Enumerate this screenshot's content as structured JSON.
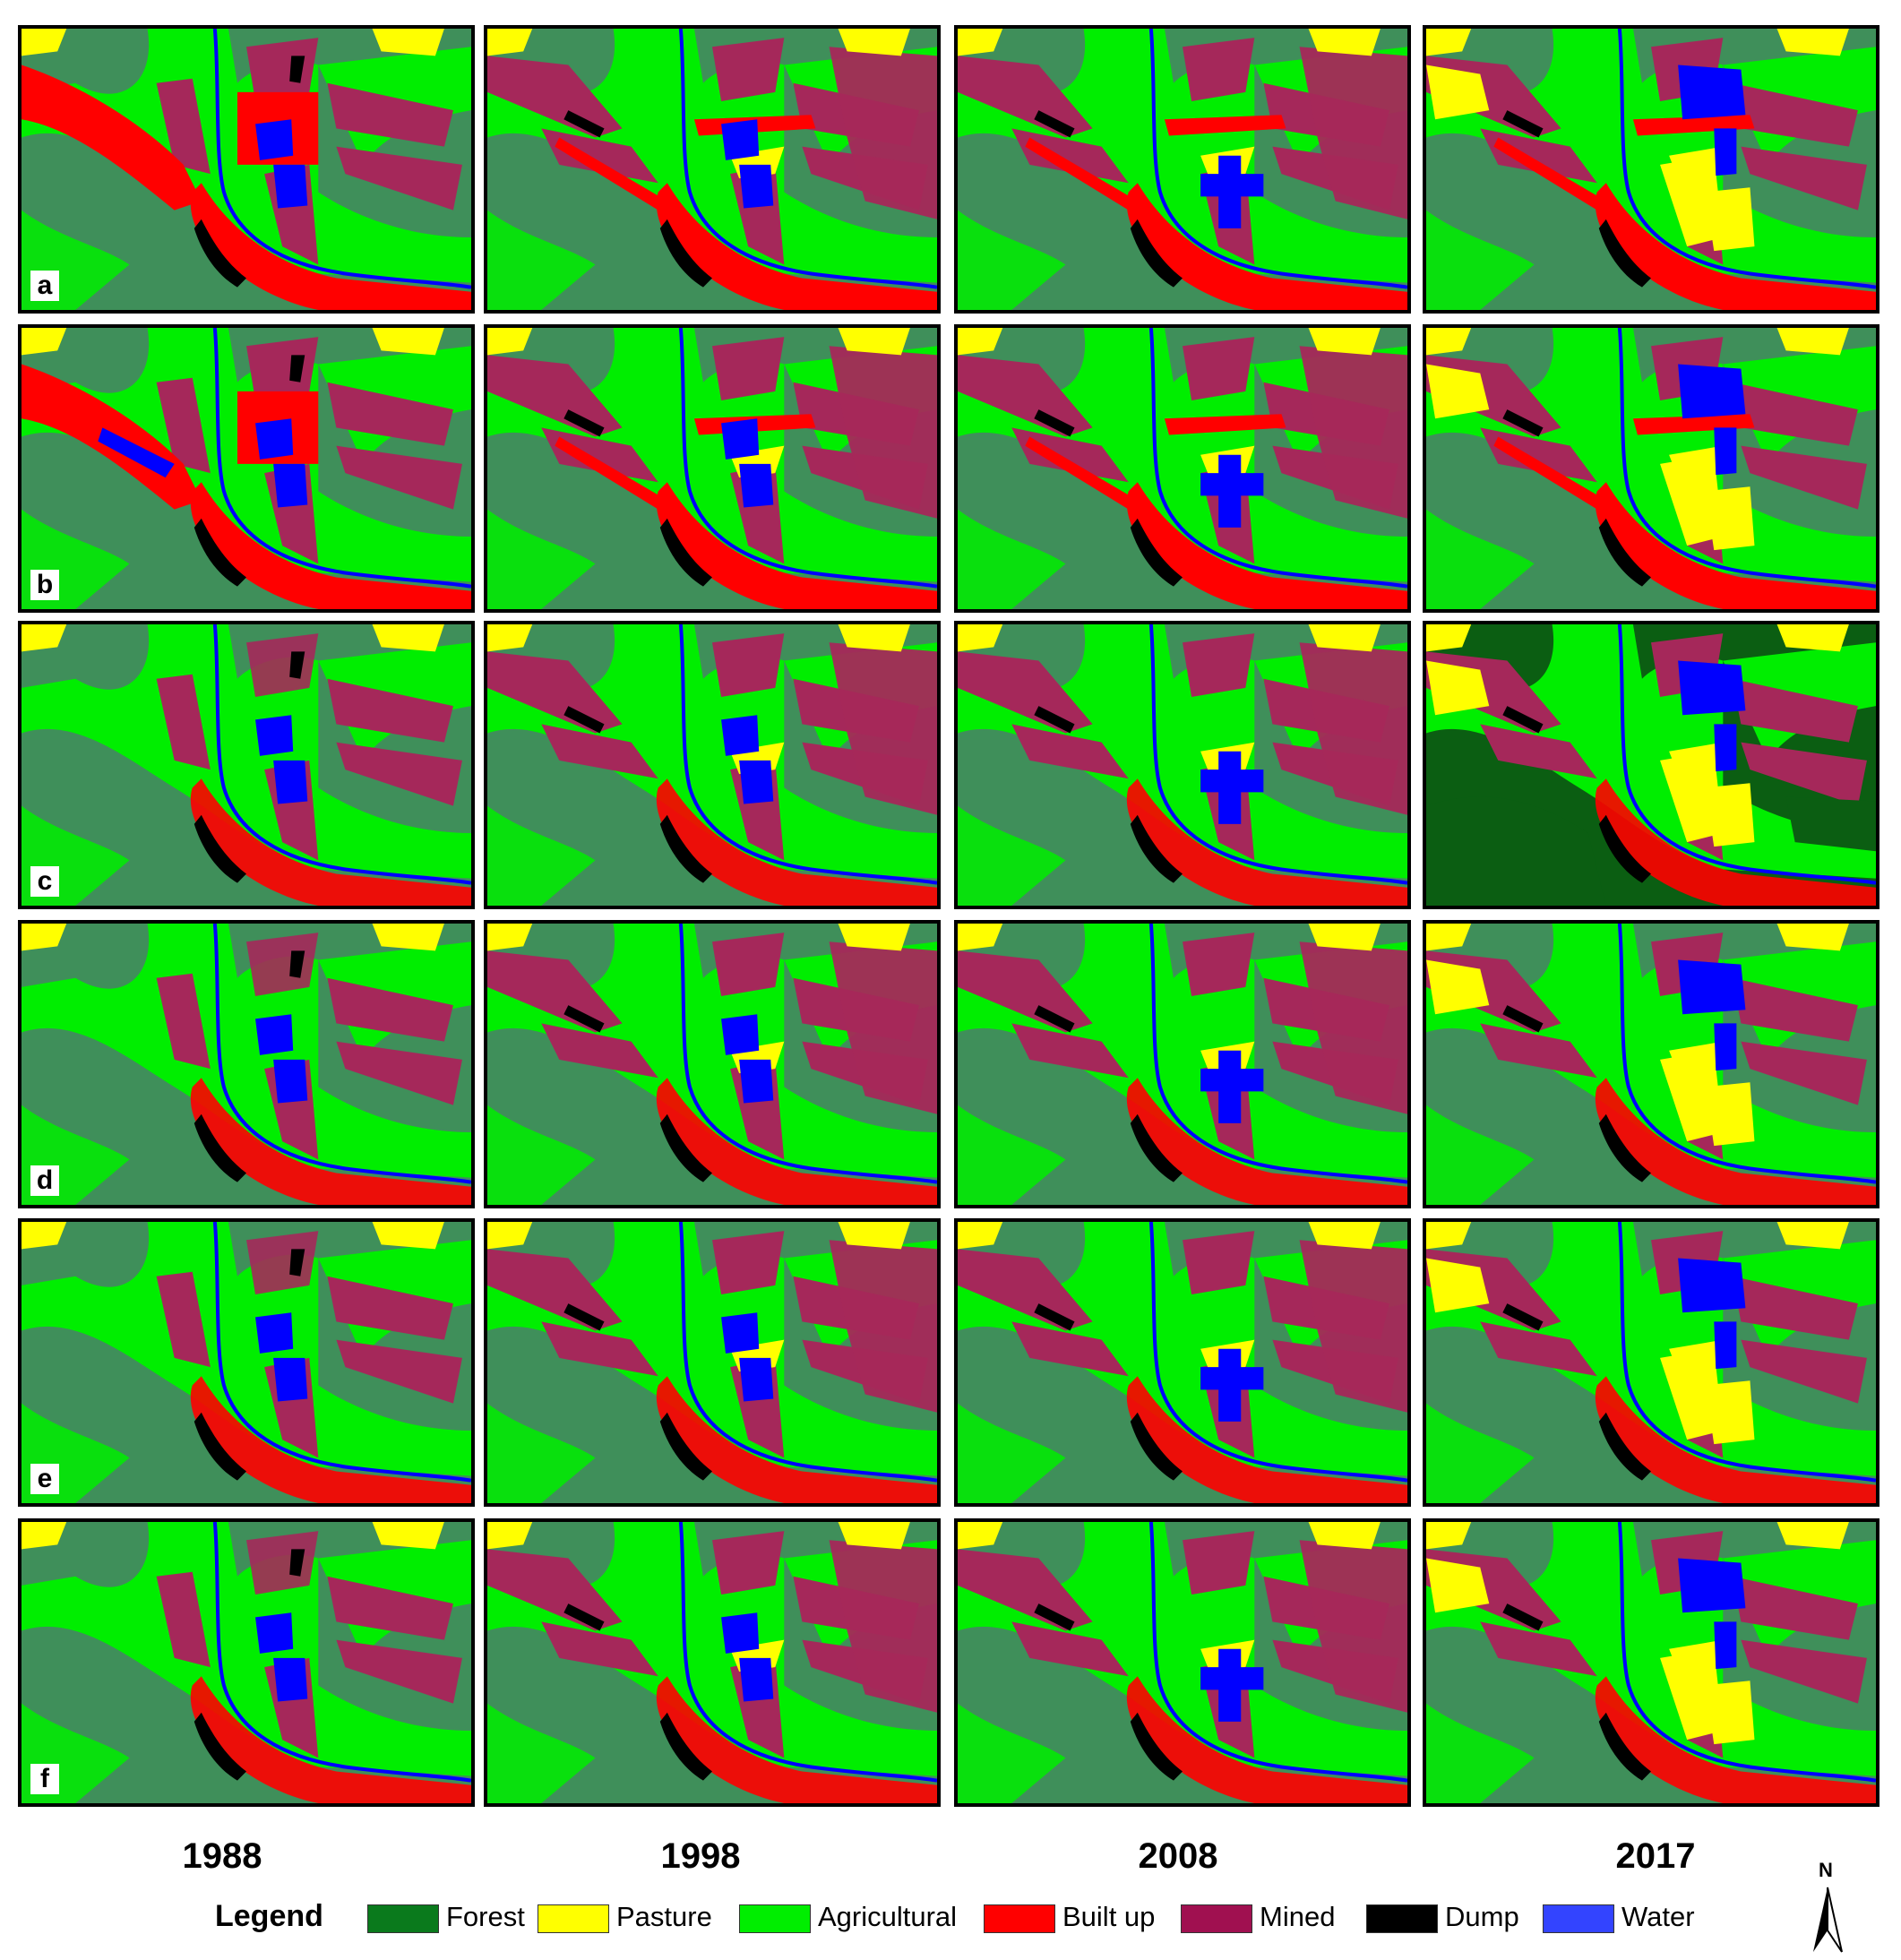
{
  "figure": {
    "row_labels": [
      "a",
      "b",
      "c",
      "d",
      "e",
      "f"
    ],
    "years": [
      "1988",
      "1998",
      "2008",
      "2017"
    ]
  },
  "legend": {
    "title": "Legend",
    "items": [
      {
        "label": "Forest",
        "color": "#0a7a1c"
      },
      {
        "label": "Pasture",
        "color": "#ffff00"
      },
      {
        "label": "Agricultural",
        "color": "#00ee00"
      },
      {
        "label": "Built up",
        "color": "#ff0000"
      },
      {
        "label": "Mined",
        "color": "#a01050"
      },
      {
        "label": "Dump",
        "color": "#000000"
      },
      {
        "label": "Water",
        "color": "#3344ff"
      }
    ]
  },
  "map_colors": {
    "forest_dark_green": "#3f8f5a",
    "forest_deep": "#0b5e12",
    "agricultural": "#00ee00",
    "pasture": "#ffff00",
    "built_up": "#ff0000",
    "mined": "#a5285a",
    "dump": "#000000",
    "water": "#0000ff"
  },
  "north_arrow": {
    "label": "N"
  }
}
